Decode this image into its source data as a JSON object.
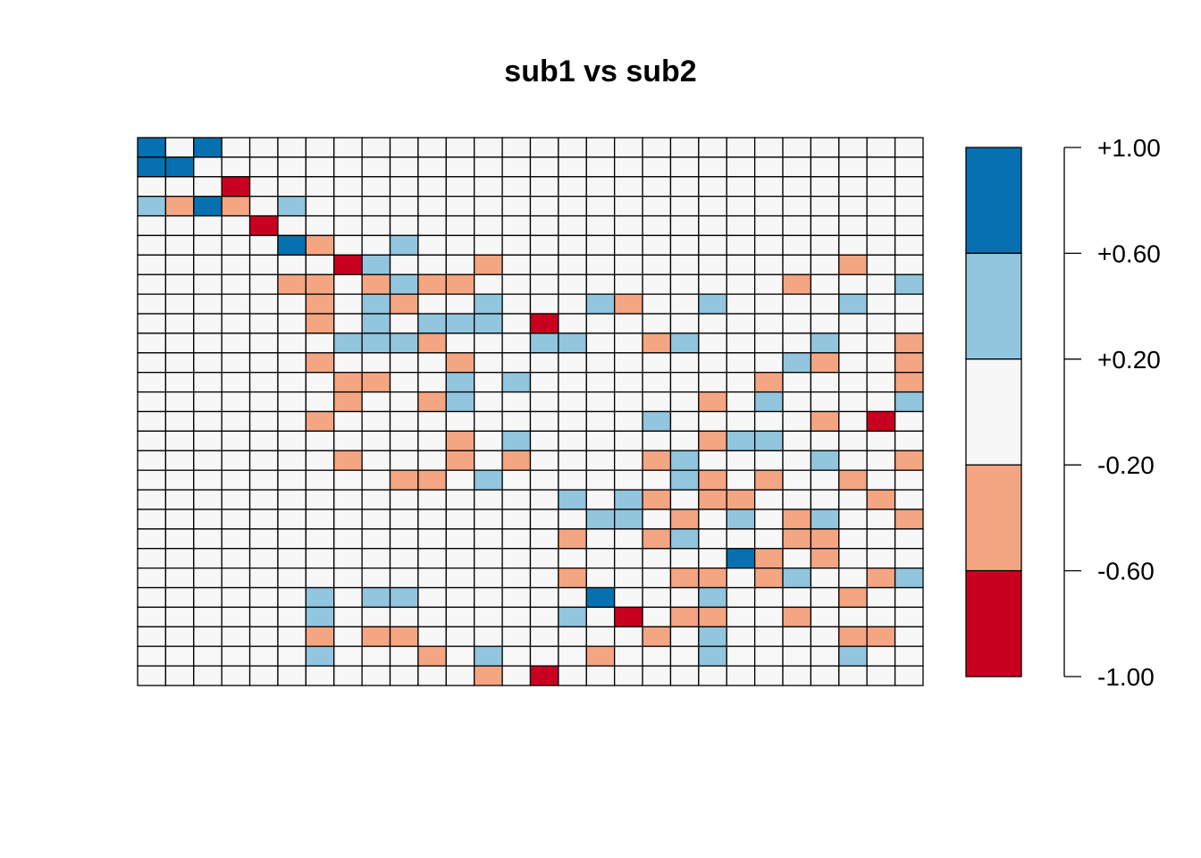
{
  "chart_data": {
    "type": "heatmap",
    "title": "sub1 vs sub2",
    "n_rows": 28,
    "n_cols": 28,
    "value_levels": {
      "2": 0.8,
      "1": 0.4,
      "0": 0.0,
      "-1": -0.4,
      "-2": -0.8
    },
    "rows": [
      "2020000000000000000000000000",
      "2200000000000000000000000000",
      "000-200000000000000000000000",
      "1-12-0100000000000000000000000",
      "0000-20000000000000000000000",
      "000002-0010000000000000000000",
      "0000000-2100-0000000000000-0000",
      "00000-1-10-11-1-100000000000-1001",
      "0000000-1010010000001-1001000001000",
      "0000000-101011100-20000000000000",
      "0000000011-1100110-11000100-1",
      "0000000-1000-10000000000000001-100-1",
      "00000000-1-1000100100000000-10000-1",
      "00000000-100-11000000000-10100001",
      "0000000-100000000000100000-10-20",
      "000000000000-1010000000-11100000",
      "00000000-1000-10-100000-110000010-1",
      "0000000000000-1-10100000010-100-10-100",
      "000000000000000001010-10-1-10000-10",
      "00000000000000000001100-10-110-1100-1",
      "00000000000000000000-1000-11000-1-1000",
      "000000000000000000000000002-100-1000",
      "00000000000000000000-10000-1-10-11000-11",
      "00000001011000000000200000010000-100",
      "000000010000000000001-20-1-100-10000",
      "0000000-10-1-1000000000000-10100000-1-10",
      "0000000100000-101000000-1000010000100",
      "000000000000-10-2000000000000000"
    ],
    "cell_grid": [
      [
        2,
        0,
        2,
        0,
        0,
        0,
        0,
        0,
        0,
        0,
        0,
        0,
        0,
        0,
        0,
        0,
        0,
        0,
        0,
        0,
        0,
        0,
        0,
        0,
        0,
        0,
        0,
        0
      ],
      [
        2,
        2,
        0,
        0,
        0,
        0,
        0,
        0,
        0,
        0,
        0,
        0,
        0,
        0,
        0,
        0,
        0,
        0,
        0,
        0,
        0,
        0,
        0,
        0,
        0,
        0,
        0,
        0
      ],
      [
        0,
        0,
        0,
        -2,
        0,
        0,
        0,
        0,
        0,
        0,
        0,
        0,
        0,
        0,
        0,
        0,
        0,
        0,
        0,
        0,
        0,
        0,
        0,
        0,
        0,
        0,
        0,
        0
      ],
      [
        1,
        -1,
        2,
        -1,
        0,
        1,
        0,
        0,
        0,
        0,
        0,
        0,
        0,
        0,
        0,
        0,
        0,
        0,
        0,
        0,
        0,
        0,
        0,
        0,
        0,
        0,
        0,
        0
      ],
      [
        0,
        0,
        0,
        0,
        -2,
        0,
        0,
        0,
        0,
        0,
        0,
        0,
        0,
        0,
        0,
        0,
        0,
        0,
        0,
        0,
        0,
        0,
        0,
        0,
        0,
        0,
        0,
        0
      ],
      [
        0,
        0,
        0,
        0,
        0,
        2,
        -1,
        0,
        0,
        1,
        0,
        0,
        0,
        0,
        0,
        0,
        0,
        0,
        0,
        0,
        0,
        0,
        0,
        0,
        0,
        0,
        0,
        0
      ],
      [
        0,
        0,
        0,
        0,
        0,
        0,
        0,
        -2,
        1,
        0,
        0,
        0,
        -1,
        0,
        0,
        0,
        0,
        0,
        0,
        0,
        0,
        0,
        0,
        0,
        0,
        -1,
        0,
        0
      ],
      [
        0,
        0,
        0,
        0,
        0,
        -1,
        -1,
        0,
        -1,
        1,
        -1,
        -1,
        0,
        0,
        0,
        0,
        0,
        0,
        0,
        0,
        0,
        0,
        0,
        -1,
        0,
        0,
        0,
        1
      ],
      [
        0,
        0,
        0,
        0,
        0,
        0,
        -1,
        0,
        1,
        -1,
        0,
        0,
        1,
        0,
        0,
        0,
        1,
        -1,
        0,
        0,
        1,
        0,
        0,
        0,
        0,
        1,
        0,
        0
      ],
      [
        0,
        0,
        0,
        0,
        0,
        0,
        -1,
        0,
        1,
        0,
        1,
        1,
        1,
        0,
        -2,
        0,
        0,
        0,
        0,
        0,
        0,
        0,
        0,
        0,
        0,
        0,
        0,
        0
      ],
      [
        0,
        0,
        0,
        0,
        0,
        0,
        0,
        1,
        1,
        1,
        -1,
        0,
        0,
        0,
        1,
        1,
        0,
        0,
        -1,
        1,
        0,
        0,
        0,
        0,
        1,
        0,
        0,
        -1
      ],
      [
        0,
        0,
        0,
        0,
        0,
        0,
        -1,
        0,
        0,
        0,
        0,
        -1,
        0,
        0,
        0,
        0,
        0,
        0,
        0,
        0,
        0,
        0,
        0,
        1,
        -1,
        0,
        0,
        -1
      ],
      [
        0,
        0,
        0,
        0,
        0,
        0,
        0,
        -1,
        -1,
        0,
        0,
        1,
        0,
        1,
        0,
        0,
        0,
        0,
        0,
        0,
        0,
        0,
        -1,
        0,
        0,
        0,
        0,
        -1
      ],
      [
        0,
        0,
        0,
        0,
        0,
        0,
        0,
        -1,
        0,
        0,
        -1,
        1,
        0,
        0,
        0,
        0,
        0,
        0,
        0,
        0,
        -1,
        0,
        1,
        0,
        0,
        0,
        0,
        1
      ],
      [
        0,
        0,
        0,
        0,
        0,
        0,
        -1,
        0,
        0,
        0,
        0,
        0,
        0,
        0,
        0,
        0,
        0,
        0,
        1,
        0,
        0,
        0,
        0,
        0,
        -1,
        0,
        -2,
        0
      ],
      [
        0,
        0,
        0,
        0,
        0,
        0,
        0,
        0,
        0,
        0,
        0,
        -1,
        0,
        1,
        0,
        0,
        0,
        0,
        0,
        0,
        -1,
        1,
        1,
        0,
        0,
        0,
        0,
        0
      ],
      [
        0,
        0,
        0,
        0,
        0,
        0,
        0,
        -1,
        0,
        0,
        0,
        -1,
        0,
        -1,
        0,
        0,
        0,
        0,
        -1,
        1,
        0,
        0,
        0,
        0,
        1,
        0,
        0,
        -1
      ],
      [
        0,
        0,
        0,
        0,
        0,
        0,
        0,
        0,
        0,
        -1,
        -1,
        0,
        1,
        0,
        0,
        0,
        0,
        0,
        0,
        1,
        -1,
        0,
        -1,
        0,
        0,
        -1,
        0,
        0
      ],
      [
        0,
        0,
        0,
        0,
        0,
        0,
        0,
        0,
        0,
        0,
        0,
        0,
        0,
        0,
        0,
        1,
        0,
        1,
        -1,
        0,
        -1,
        -1,
        0,
        0,
        0,
        0,
        -1,
        0
      ],
      [
        0,
        0,
        0,
        0,
        0,
        0,
        0,
        0,
        0,
        0,
        0,
        0,
        0,
        0,
        0,
        0,
        1,
        1,
        0,
        -1,
        0,
        1,
        0,
        -1,
        1,
        0,
        0,
        -1
      ],
      [
        0,
        0,
        0,
        0,
        0,
        0,
        0,
        0,
        0,
        0,
        0,
        0,
        0,
        0,
        0,
        -1,
        0,
        0,
        -1,
        1,
        0,
        0,
        0,
        -1,
        -1,
        0,
        0,
        0
      ],
      [
        0,
        0,
        0,
        0,
        0,
        0,
        0,
        0,
        0,
        0,
        0,
        0,
        0,
        0,
        0,
        0,
        0,
        0,
        0,
        0,
        0,
        2,
        -1,
        0,
        -1,
        0,
        0,
        0
      ],
      [
        0,
        0,
        0,
        0,
        0,
        0,
        0,
        0,
        0,
        0,
        0,
        0,
        0,
        0,
        0,
        -1,
        0,
        0,
        0,
        -1,
        -1,
        0,
        -1,
        1,
        0,
        0,
        -1,
        1
      ],
      [
        0,
        0,
        0,
        0,
        0,
        0,
        1,
        0,
        1,
        1,
        0,
        0,
        0,
        0,
        0,
        0,
        2,
        0,
        0,
        0,
        1,
        0,
        0,
        0,
        0,
        -1,
        0,
        0
      ],
      [
        0,
        0,
        0,
        0,
        0,
        0,
        1,
        0,
        0,
        0,
        0,
        0,
        0,
        0,
        0,
        1,
        0,
        -2,
        0,
        -1,
        -1,
        0,
        0,
        -1,
        0,
        0,
        0,
        0
      ],
      [
        0,
        0,
        0,
        0,
        0,
        0,
        -1,
        0,
        -1,
        -1,
        0,
        0,
        0,
        0,
        0,
        0,
        0,
        0,
        -1,
        0,
        1,
        0,
        0,
        0,
        0,
        -1,
        -1,
        0
      ],
      [
        0,
        0,
        0,
        0,
        0,
        0,
        1,
        0,
        0,
        0,
        -1,
        0,
        1,
        0,
        0,
        0,
        -1,
        0,
        0,
        0,
        1,
        0,
        0,
        0,
        0,
        1,
        0,
        0
      ],
      [
        0,
        0,
        0,
        0,
        0,
        0,
        0,
        0,
        0,
        0,
        0,
        0,
        -1,
        0,
        -2,
        0,
        0,
        0,
        0,
        0,
        0,
        0,
        0,
        0,
        0,
        0,
        0,
        0
      ]
    ],
    "colors": {
      "2": "#0571b0",
      "1": "#92c5de",
      "0": "#f7f7f7",
      "-1": "#f4a582",
      "-2": "#ca0020"
    },
    "legend": {
      "position": "right",
      "breaks": [
        1.0,
        0.6,
        0.2,
        -0.2,
        -0.6,
        -1.0
      ],
      "tick_labels": [
        "+1.00",
        "+0.60",
        "+0.20",
        "-0.20",
        "-0.60",
        "-1.00"
      ],
      "bin_colors_top_to_bottom": [
        "#0571b0",
        "#92c5de",
        "#f7f7f7",
        "#f4a582",
        "#ca0020"
      ]
    },
    "xlabel": "",
    "ylabel": "",
    "grid": true
  }
}
